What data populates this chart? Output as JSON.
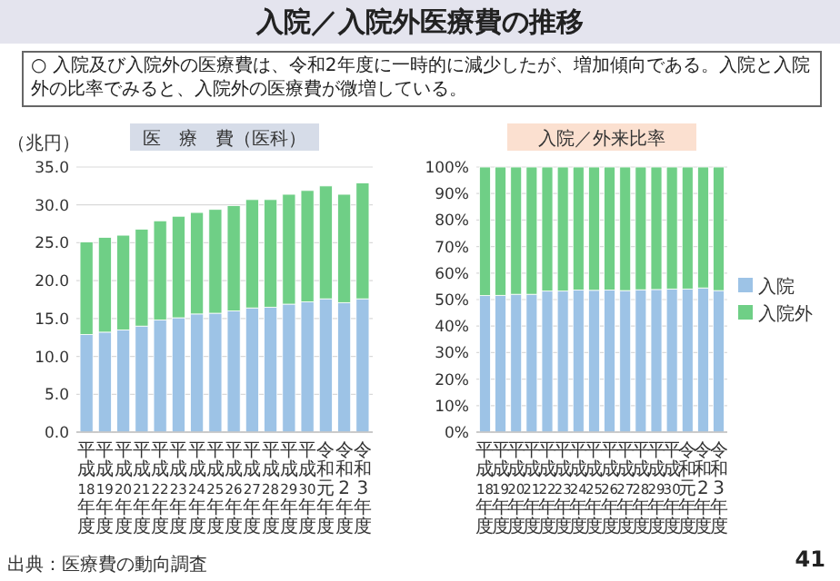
{
  "chart_data": [
    {
      "type": "bar",
      "title": "医　療　費（医科）",
      "ylabel": "（兆円）",
      "stacked": true,
      "grid": "y",
      "legend": false,
      "annotations": [
        "入院／入院外医療費の推移",
        "○ 入院及び入院外の医療費は、令和2年度に一時的に減少したが、増加傾向である。入院と入院外の比率でみると、入院外の医療費が微増している。",
        "出典：医療費の動向調査"
      ],
      "categories": [
        "平成18年度",
        "平成19年度",
        "平成20年度",
        "平成21年度",
        "平成22年度",
        "平成23年度",
        "平成24年度",
        "平成25年度",
        "平成26年度",
        "平成27年度",
        "平成28年度",
        "平成29年度",
        "平成30年度",
        "令和元年度",
        "令和2年度",
        "令和3年度"
      ],
      "ylim": [
        0,
        35
      ],
      "yticks": [
        {
          "value": 0,
          "label": "0.0"
        },
        {
          "value": 5,
          "label": "5.0"
        },
        {
          "value": 10,
          "label": "10.0"
        },
        {
          "value": 15,
          "label": "15.0"
        },
        {
          "value": 20,
          "label": "20.0"
        },
        {
          "value": 25,
          "label": "25.0"
        },
        {
          "value": 30,
          "label": "30.0"
        },
        {
          "value": 35,
          "label": "35.0"
        }
      ],
      "series": [
        {
          "color": "#9dc3e6",
          "values": [
            12.9,
            13.2,
            13.5,
            14.0,
            14.8,
            15.1,
            15.6,
            15.7,
            16.0,
            16.4,
            16.5,
            16.9,
            17.2,
            17.6,
            17.1,
            17.6
          ]
        },
        {
          "color": "#6fcf86",
          "values": [
            12.2,
            12.5,
            12.5,
            12.8,
            13.1,
            13.4,
            13.4,
            13.7,
            13.9,
            14.3,
            14.2,
            14.5,
            14.7,
            14.9,
            14.3,
            15.3
          ]
        }
      ]
    },
    {
      "type": "bar",
      "title": "入院／外来比率",
      "stacked": true,
      "grid": "y",
      "legend": "right",
      "annotations": [
        "41"
      ],
      "categories": [
        "平成18年度",
        "平成19年度",
        "平成20年度",
        "平成21年度",
        "平成22年度",
        "平成23年度",
        "平成24年度",
        "平成25年度",
        "平成26年度",
        "平成27年度",
        "平成28年度",
        "平成29年度",
        "平成30年度",
        "令和元年度",
        "令和2年度",
        "令和3年度"
      ],
      "ylim": [
        0,
        100
      ],
      "yticks": [
        {
          "value": 0,
          "label": "0%"
        },
        {
          "value": 10,
          "label": "10%"
        },
        {
          "value": 20,
          "label": "20%"
        },
        {
          "value": 30,
          "label": "30%"
        },
        {
          "value": 40,
          "label": "40%"
        },
        {
          "value": 50,
          "label": "50%"
        },
        {
          "value": 60,
          "label": "60%"
        },
        {
          "value": 70,
          "label": "70%"
        },
        {
          "value": 80,
          "label": "80%"
        },
        {
          "value": 90,
          "label": "90%"
        },
        {
          "value": 100,
          "label": "100%"
        }
      ],
      "series": [
        {
          "name": "入院",
          "color": "#9dc3e6",
          "values": [
            51.5,
            51.6,
            52,
            52,
            53.2,
            53.2,
            53.6,
            53.5,
            53.6,
            53.4,
            53.7,
            53.8,
            54,
            54,
            54.4,
            53.4
          ]
        },
        {
          "name": "入院外",
          "color": "#6fcf86",
          "values": [
            48.5,
            48.4,
            48,
            48,
            46.8,
            46.8,
            46.4,
            46.5,
            46.4,
            46.6,
            46.3,
            46.2,
            46,
            46,
            45.6,
            46.6
          ]
        }
      ]
    }
  ]
}
